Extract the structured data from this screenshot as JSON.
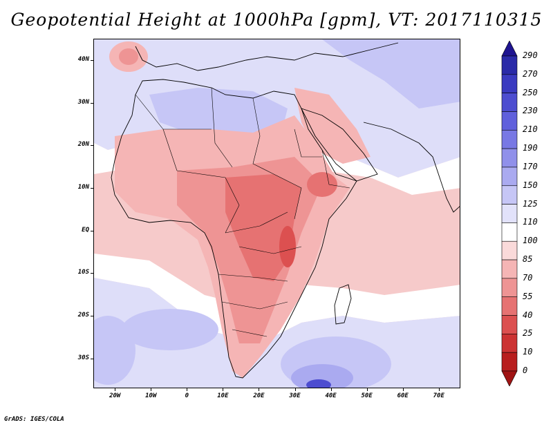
{
  "title": "Geopotential Height at 1000hPa [gpm], VT: 2017110315",
  "credit": "GrADS: IGES/COLA",
  "map": {
    "lon_range": [
      -26,
      76
    ],
    "lat_range": [
      -37,
      45
    ],
    "lat_labels": [
      {
        "lat": 40,
        "text": "40N"
      },
      {
        "lat": 30,
        "text": "30N"
      },
      {
        "lat": 20,
        "text": "20N"
      },
      {
        "lat": 10,
        "text": "10N"
      },
      {
        "lat": 0,
        "text": "EQ"
      },
      {
        "lat": -10,
        "text": "10S"
      },
      {
        "lat": -20,
        "text": "20S"
      },
      {
        "lat": -30,
        "text": "30S"
      }
    ],
    "lon_labels": [
      {
        "lon": -20,
        "text": "20W"
      },
      {
        "lon": -10,
        "text": "10W"
      },
      {
        "lon": 0,
        "text": "0"
      },
      {
        "lon": 10,
        "text": "10E"
      },
      {
        "lon": 20,
        "text": "20E"
      },
      {
        "lon": 30,
        "text": "30E"
      },
      {
        "lon": 40,
        "text": "40E"
      },
      {
        "lon": 50,
        "text": "50E"
      },
      {
        "lon": 60,
        "text": "60E"
      },
      {
        "lon": 70,
        "text": "70E"
      }
    ]
  },
  "colorbar": {
    "labels": [
      "290",
      "270",
      "250",
      "230",
      "210",
      "190",
      "170",
      "150",
      "125",
      "110",
      "100",
      "85",
      "70",
      "55",
      "40",
      "25",
      "10",
      "0"
    ],
    "colors": [
      "#1e1490",
      "#2a2aa8",
      "#3a3ac0",
      "#4d4dd0",
      "#6060dc",
      "#7878e4",
      "#9090ea",
      "#aaaaf0",
      "#c6c6f6",
      "#e2e2fa",
      "#ffffff",
      "#fadada",
      "#f5b5b5",
      "#ee9494",
      "#e67272",
      "#dc5050",
      "#cc3333",
      "#b81e1e",
      "#a01414"
    ]
  },
  "field_colors": {
    "ocean_base": "#f6caca",
    "white_band": "#ffffff",
    "blue_light": "#dedef9",
    "blue_mid": "#c6c6f6",
    "blue_deep": "#aaaaf0",
    "blue_dark": "#4d4dd0",
    "red_light": "#f5b5b5",
    "red_mid": "#ee9494",
    "red_deep": "#e67272",
    "red_dark": "#dc5050"
  }
}
